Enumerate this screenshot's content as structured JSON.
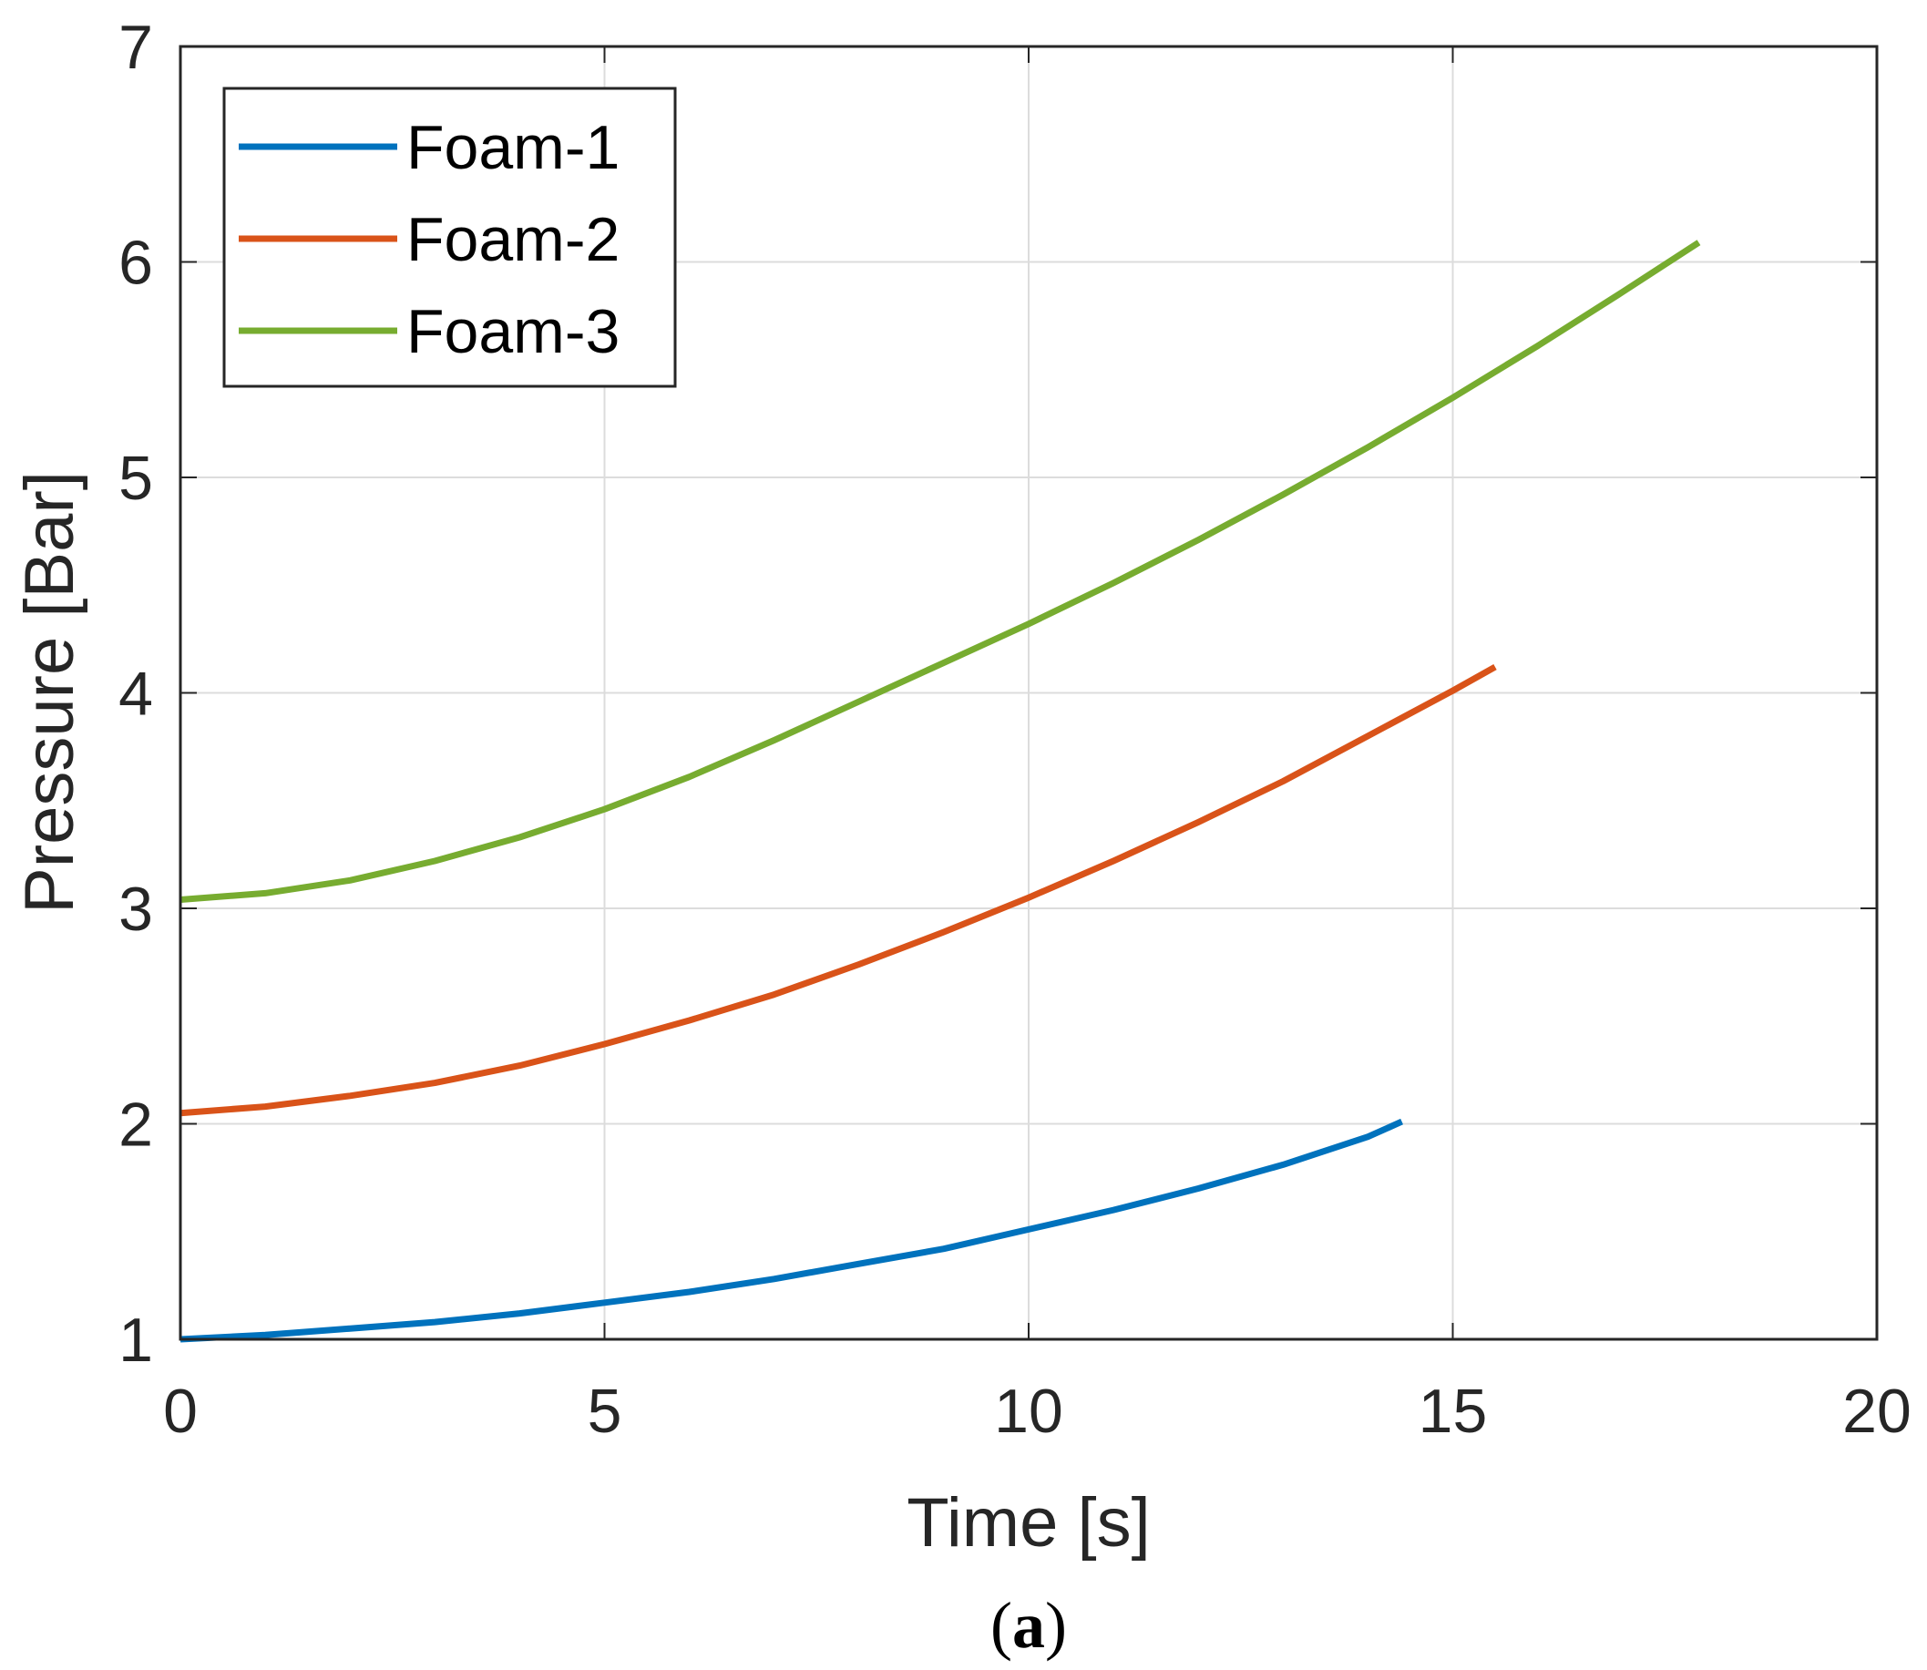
{
  "chart_data": {
    "type": "line",
    "xlabel": "Time [s]",
    "ylabel": "Pressure [Bar]",
    "xlim": [
      0,
      20
    ],
    "ylim": [
      1,
      7
    ],
    "xticks": [
      "0",
      "5",
      "10",
      "15",
      "20"
    ],
    "yticks": [
      "1",
      "2",
      "3",
      "4",
      "5",
      "6",
      "7"
    ],
    "grid": true,
    "legend_position": "top-left",
    "series": [
      {
        "name": "Foam-1",
        "color": "#0072BD",
        "x": [
          0,
          1,
          2,
          3,
          4,
          5,
          6,
          7,
          8,
          9,
          10,
          11,
          12,
          13,
          14,
          14.4
        ],
        "y": [
          1.0,
          1.02,
          1.05,
          1.08,
          1.12,
          1.17,
          1.22,
          1.28,
          1.35,
          1.42,
          1.51,
          1.6,
          1.7,
          1.81,
          1.94,
          2.01
        ]
      },
      {
        "name": "Foam-2",
        "color": "#D95319",
        "x": [
          0,
          1,
          2,
          3,
          4,
          5,
          6,
          7,
          8,
          9,
          10,
          11,
          12,
          13,
          14,
          15,
          15.5
        ],
        "y": [
          2.05,
          2.08,
          2.13,
          2.19,
          2.27,
          2.37,
          2.48,
          2.6,
          2.74,
          2.89,
          3.05,
          3.22,
          3.4,
          3.59,
          3.8,
          4.01,
          4.12
        ]
      },
      {
        "name": "Foam-3",
        "color": "#77AC30",
        "x": [
          0,
          1,
          2,
          3,
          4,
          5,
          6,
          7,
          8,
          9,
          10,
          11,
          12,
          13,
          14,
          15,
          16,
          17,
          17.9
        ],
        "y": [
          3.04,
          3.07,
          3.13,
          3.22,
          3.33,
          3.46,
          3.61,
          3.78,
          3.96,
          4.14,
          4.32,
          4.51,
          4.71,
          4.92,
          5.14,
          5.37,
          5.61,
          5.86,
          6.09
        ]
      }
    ]
  },
  "caption": {
    "open": "(",
    "letter": "a",
    "close": ")"
  }
}
